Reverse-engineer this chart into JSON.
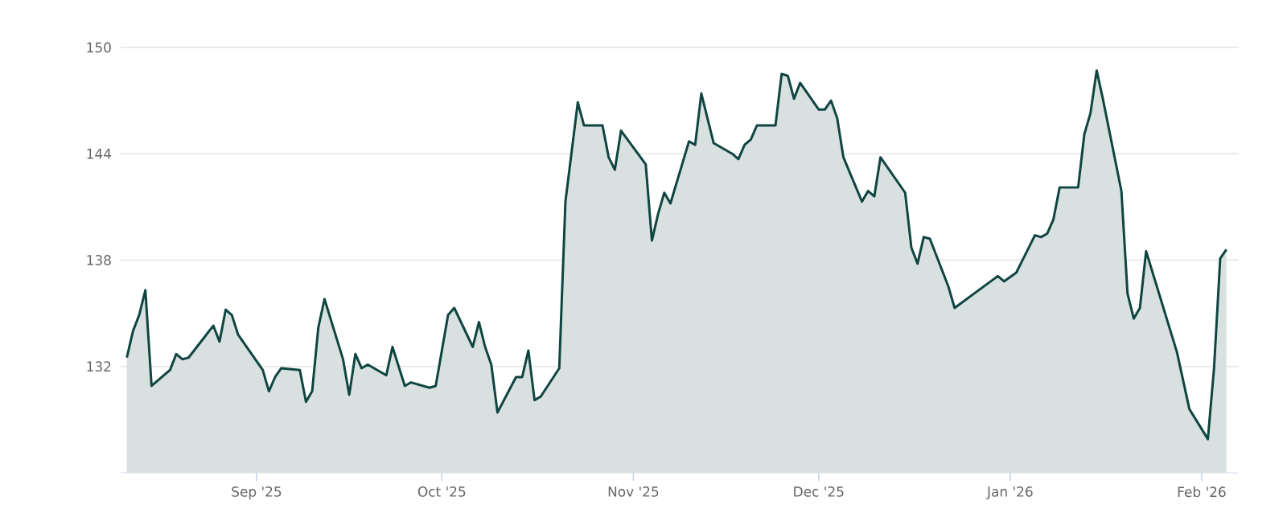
{
  "chart_data": {
    "type": "area",
    "x": [
      "2025-08-11",
      "2025-08-12",
      "2025-08-13",
      "2025-08-14",
      "2025-08-15",
      "2025-08-18",
      "2025-08-19",
      "2025-08-20",
      "2025-08-21",
      "2025-08-25",
      "2025-08-26",
      "2025-08-27",
      "2025-08-28",
      "2025-08-29",
      "2025-09-02",
      "2025-09-03",
      "2025-09-04",
      "2025-09-05",
      "2025-09-08",
      "2025-09-09",
      "2025-09-10",
      "2025-09-11",
      "2025-09-12",
      "2025-09-15",
      "2025-09-16",
      "2025-09-17",
      "2025-09-18",
      "2025-09-19",
      "2025-09-22",
      "2025-09-23",
      "2025-09-25",
      "2025-09-26",
      "2025-09-29",
      "2025-09-30",
      "2025-10-02",
      "2025-10-03",
      "2025-10-06",
      "2025-10-07",
      "2025-10-08",
      "2025-10-09",
      "2025-10-10",
      "2025-10-13",
      "2025-10-14",
      "2025-10-15",
      "2025-10-16",
      "2025-10-17",
      "2025-10-20",
      "2025-10-21",
      "2025-10-23",
      "2025-10-24",
      "2025-10-27",
      "2025-10-28",
      "2025-10-29",
      "2025-10-30",
      "2025-11-03",
      "2025-11-04",
      "2025-11-05",
      "2025-11-06",
      "2025-11-07",
      "2025-11-10",
      "2025-11-11",
      "2025-11-12",
      "2025-11-14",
      "2025-11-17",
      "2025-11-18",
      "2025-11-19",
      "2025-11-20",
      "2025-11-21",
      "2025-11-24",
      "2025-11-25",
      "2025-11-26",
      "2025-11-27",
      "2025-11-28",
      "2025-12-01",
      "2025-12-02",
      "2025-12-03",
      "2025-12-04",
      "2025-12-05",
      "2025-12-08",
      "2025-12-09",
      "2025-12-10",
      "2025-12-11",
      "2025-12-15",
      "2025-12-16",
      "2025-12-17",
      "2025-12-18",
      "2025-12-19",
      "2025-12-22",
      "2025-12-23",
      "2025-12-30",
      "2025-12-31",
      "2026-01-02",
      "2026-01-05",
      "2026-01-06",
      "2026-01-07",
      "2026-01-08",
      "2026-01-09",
      "2026-01-12",
      "2026-01-13",
      "2026-01-14",
      "2026-01-15",
      "2026-01-16",
      "2026-01-19",
      "2026-01-20",
      "2026-01-21",
      "2026-01-22",
      "2026-01-23",
      "2026-01-28",
      "2026-01-30",
      "2026-02-02",
      "2026-02-03",
      "2026-02-04",
      "2026-02-05"
    ],
    "series": [
      {
        "color": "#0f4540",
        "values": [
          132.5,
          134.0,
          134.9,
          136.3,
          130.9,
          131.8,
          132.7,
          132.4,
          132.5,
          134.3,
          133.4,
          135.2,
          134.9,
          133.8,
          131.8,
          130.6,
          131.4,
          131.9,
          131.8,
          130.0,
          130.6,
          134.2,
          135.8,
          132.4,
          130.4,
          132.7,
          131.9,
          132.1,
          131.5,
          133.1,
          130.9,
          131.1,
          130.8,
          130.9,
          134.9,
          135.3,
          133.1,
          134.5,
          133.1,
          132.1,
          129.4,
          131.4,
          131.4,
          132.9,
          130.1,
          130.3,
          131.9,
          141.3,
          146.9,
          145.6,
          145.6,
          143.8,
          143.1,
          145.3,
          143.4,
          139.1,
          140.6,
          141.8,
          141.2,
          144.7,
          144.5,
          147.4,
          144.6,
          144.0,
          143.7,
          144.5,
          144.8,
          145.6,
          145.6,
          148.5,
          148.4,
          147.1,
          148.0,
          146.5,
          146.5,
          147.0,
          146.0,
          143.8,
          141.3,
          141.9,
          141.6,
          143.8,
          141.8,
          138.7,
          137.8,
          139.3,
          139.2,
          136.5,
          135.3,
          137.1,
          136.8,
          137.3,
          139.4,
          139.3,
          139.5,
          140.3,
          142.1,
          142.1,
          145.1,
          146.3,
          148.7,
          147.1,
          141.9,
          136.1,
          134.7,
          135.3,
          138.5,
          132.8,
          129.6,
          127.9,
          131.9,
          138.1,
          138.6
        ]
      }
    ],
    "xlim": [
      "2025-08-10",
      "2026-02-07"
    ],
    "xticks": [
      {
        "value": "2025-09-01",
        "label": "Sep '25"
      },
      {
        "value": "2025-10-01",
        "label": "Oct '25"
      },
      {
        "value": "2025-11-01",
        "label": "Nov '25"
      },
      {
        "value": "2025-12-01",
        "label": "Dec '25"
      },
      {
        "value": "2026-01-01",
        "label": "Jan '26"
      },
      {
        "value": "2026-02-01",
        "label": "Feb '26"
      }
    ],
    "ylim": [
      126,
      150
    ],
    "yticks": [
      132,
      138,
      144,
      150
    ],
    "grid": "y",
    "legend": false,
    "marker": "none",
    "line_style": "solid"
  }
}
